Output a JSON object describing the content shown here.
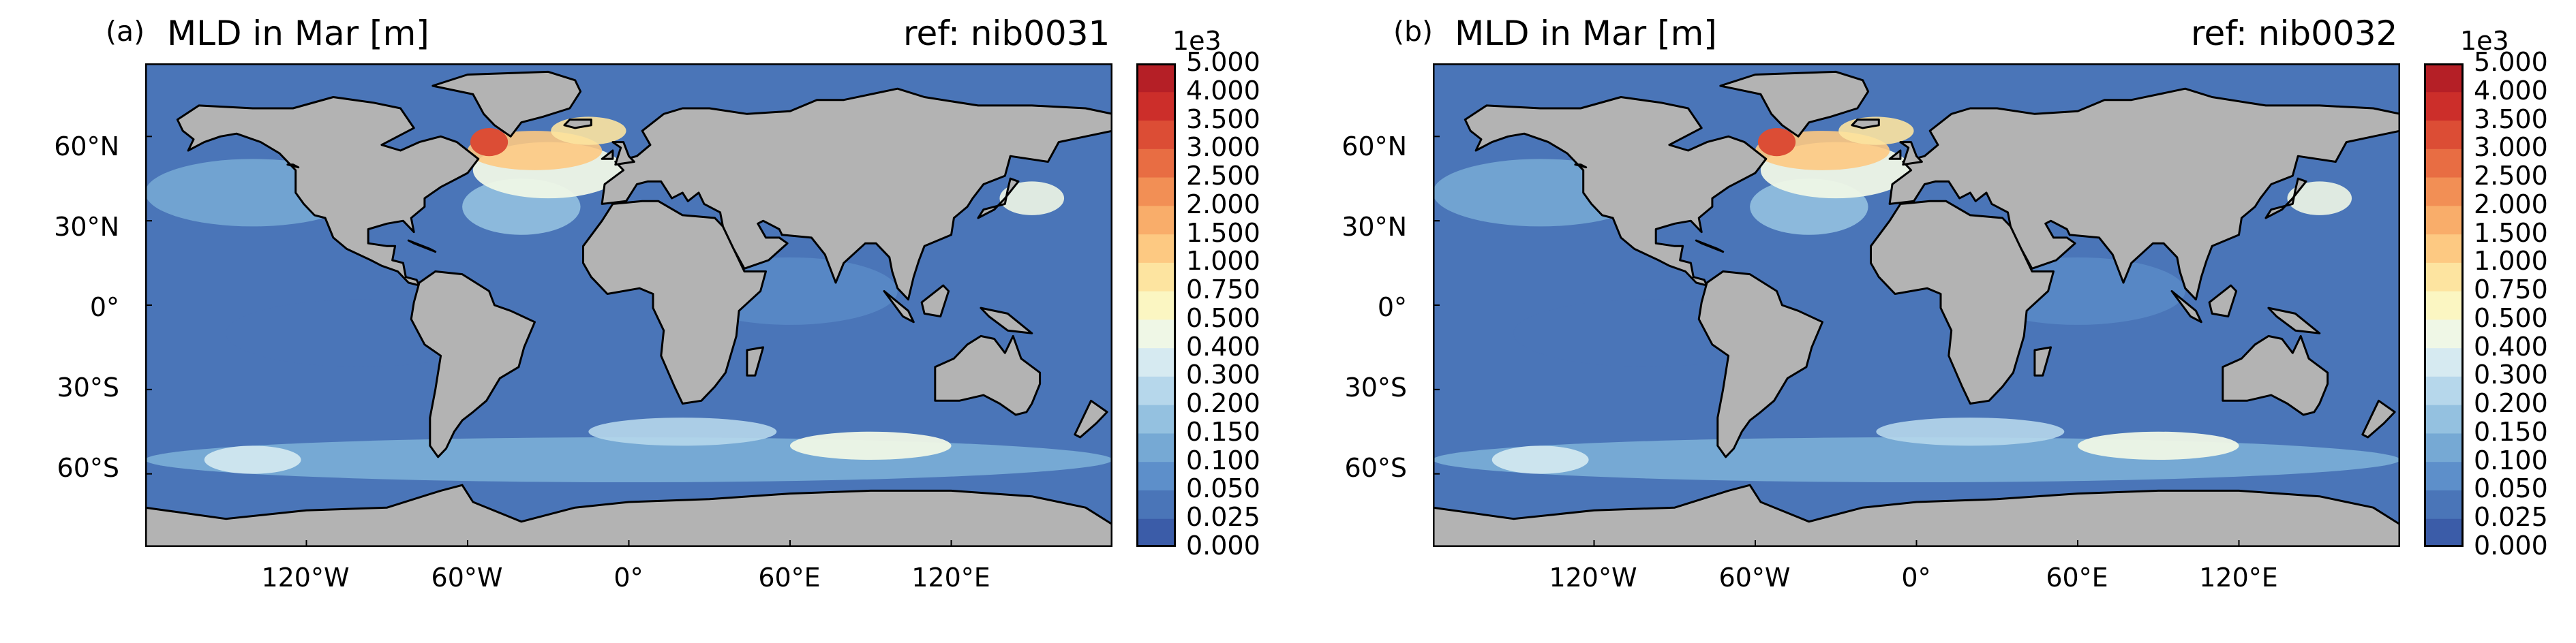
{
  "colorbar": {
    "exponent_label": "1e3",
    "ticks": [
      "5.000",
      "4.000",
      "3.500",
      "3.000",
      "2.500",
      "2.000",
      "1.500",
      "1.000",
      "0.750",
      "0.500",
      "0.400",
      "0.300",
      "0.200",
      "0.150",
      "0.100",
      "0.050",
      "0.025",
      "0.000"
    ],
    "colors": [
      "#3b5ca8",
      "#4a75b8",
      "#5d8fca",
      "#76a9d4",
      "#94c1e0",
      "#b6d7eb",
      "#d6eaf1",
      "#eff7e6",
      "#fbf6c2",
      "#fde4a0",
      "#fdc982",
      "#f9ad6a",
      "#f28f55",
      "#e86d43",
      "#dc4d35",
      "#cc2e2a",
      "#b51f26"
    ]
  },
  "map": {
    "lat_labels": [
      "60°N",
      "30°N",
      "0°",
      "30°S",
      "60°S"
    ],
    "lon_labels": [
      "120°W",
      "60°W",
      "0°",
      "60°E",
      "120°E"
    ],
    "land_color": "#b3b3b3",
    "ocean_base_color": "#4a75b8"
  },
  "panels": [
    {
      "label": "(a)",
      "title": "MLD in Mar [m]",
      "ref": "ref: nib0031"
    },
    {
      "label": "(b)",
      "title": "MLD in Mar [m]",
      "ref": "ref: nib0032"
    }
  ]
}
